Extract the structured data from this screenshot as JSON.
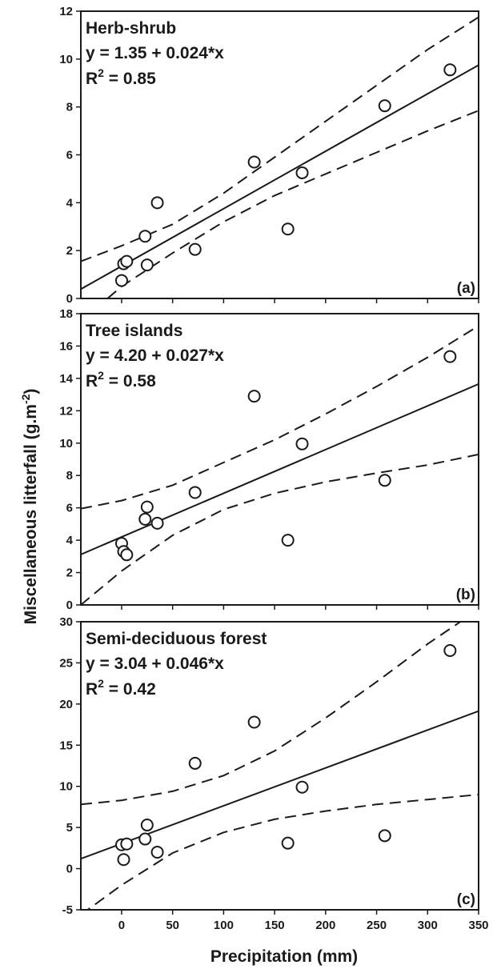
{
  "figure": {
    "xlabel": "Precipitation (mm)",
    "ylabel": "Miscellaneous litterfall (g.m",
    "ylabel_sup": "-2",
    "ylabel_close": ")"
  },
  "chart_data": [
    {
      "type": "scatter",
      "panel_label": "(a)",
      "title": "Herb-shrub",
      "equation": "y = 1.35 + 0.024*x",
      "r2_prefix": "R",
      "r2_sup": "2",
      "r2_value": " = 0.85",
      "xlim": [
        -40,
        350
      ],
      "ylim": [
        0,
        12
      ],
      "xticks": [
        0,
        50,
        100,
        150,
        200,
        250,
        300,
        350
      ],
      "yticks": [
        0,
        2,
        4,
        6,
        8,
        10,
        12
      ],
      "xtick_labels_shown": false,
      "points": {
        "x": [
          0,
          2,
          5,
          23,
          25,
          35,
          72,
          130,
          163,
          177,
          258,
          322
        ],
        "y": [
          0.75,
          1.45,
          1.55,
          2.6,
          1.4,
          4.0,
          2.05,
          5.7,
          2.9,
          5.25,
          8.05,
          9.55
        ]
      },
      "fit": {
        "intercept": 1.35,
        "slope": 0.024
      },
      "ci_upper": {
        "x": [
          -40,
          0,
          50,
          100,
          150,
          200,
          250,
          300,
          350
        ],
        "y": [
          1.55,
          2.2,
          3.1,
          4.4,
          5.9,
          7.4,
          8.9,
          10.4,
          11.75
        ]
      },
      "ci_lower": {
        "x": [
          -40,
          0,
          50,
          100,
          150,
          200,
          250,
          300,
          350
        ],
        "y": [
          -0.95,
          0.5,
          1.9,
          3.2,
          4.3,
          5.2,
          6.1,
          7.0,
          7.85
        ]
      }
    },
    {
      "type": "scatter",
      "panel_label": "(b)",
      "title": "Tree islands",
      "equation": "y = 4.20 + 0.027*x",
      "r2_prefix": "R",
      "r2_sup": "2",
      "r2_value": " = 0.58",
      "xlim": [
        -40,
        350
      ],
      "ylim": [
        0,
        18
      ],
      "xticks": [
        0,
        50,
        100,
        150,
        200,
        250,
        300,
        350
      ],
      "yticks": [
        0,
        2,
        4,
        6,
        8,
        10,
        12,
        14,
        16,
        18
      ],
      "xtick_labels_shown": false,
      "points": {
        "x": [
          0,
          2,
          5,
          23,
          25,
          35,
          72,
          130,
          163,
          177,
          258,
          322
        ],
        "y": [
          3.8,
          3.3,
          3.1,
          5.3,
          6.05,
          5.05,
          6.95,
          12.9,
          4.0,
          9.95,
          7.7,
          15.35
        ]
      },
      "fit": {
        "intercept": 4.2,
        "slope": 0.027
      },
      "ci_upper": {
        "x": [
          -40,
          0,
          50,
          100,
          150,
          200,
          250,
          300,
          350
        ],
        "y": [
          5.95,
          6.45,
          7.4,
          8.8,
          10.2,
          11.8,
          13.5,
          15.3,
          17.25
        ]
      },
      "ci_lower": {
        "x": [
          -40,
          0,
          50,
          100,
          150,
          200,
          250,
          300,
          350
        ],
        "y": [
          0.0,
          2.1,
          4.3,
          5.9,
          6.9,
          7.6,
          8.15,
          8.65,
          9.3
        ]
      }
    },
    {
      "type": "scatter",
      "panel_label": "(c)",
      "title": "Semi-deciduous forest",
      "equation": "y = 3.04 + 0.046*x",
      "r2_prefix": "R",
      "r2_sup": "2",
      "r2_value": " = 0.42",
      "xlim": [
        -40,
        350
      ],
      "ylim": [
        -5,
        30
      ],
      "xticks": [
        0,
        50,
        100,
        150,
        200,
        250,
        300,
        350
      ],
      "yticks": [
        -5,
        0,
        5,
        10,
        15,
        20,
        25,
        30
      ],
      "xtick_labels_shown": true,
      "points": {
        "x": [
          0,
          2,
          5,
          23,
          25,
          35,
          72,
          130,
          163,
          177,
          258,
          322
        ],
        "y": [
          2.9,
          1.1,
          3.0,
          3.6,
          5.3,
          2.0,
          12.8,
          17.8,
          3.1,
          9.9,
          4.0,
          26.5
        ]
      },
      "fit": {
        "intercept": 3.04,
        "slope": 0.046
      },
      "ci_upper": {
        "x": [
          -40,
          0,
          50,
          100,
          150,
          200,
          250,
          300,
          350
        ],
        "y": [
          7.8,
          8.3,
          9.4,
          11.3,
          14.3,
          18.3,
          22.7,
          27.3,
          31.5
        ]
      },
      "ci_lower": {
        "x": [
          -40,
          0,
          50,
          100,
          150,
          200,
          250,
          300,
          350
        ],
        "y": [
          -5.6,
          -2.0,
          1.9,
          4.4,
          6.0,
          7.0,
          7.8,
          8.4,
          9.0
        ]
      }
    }
  ]
}
